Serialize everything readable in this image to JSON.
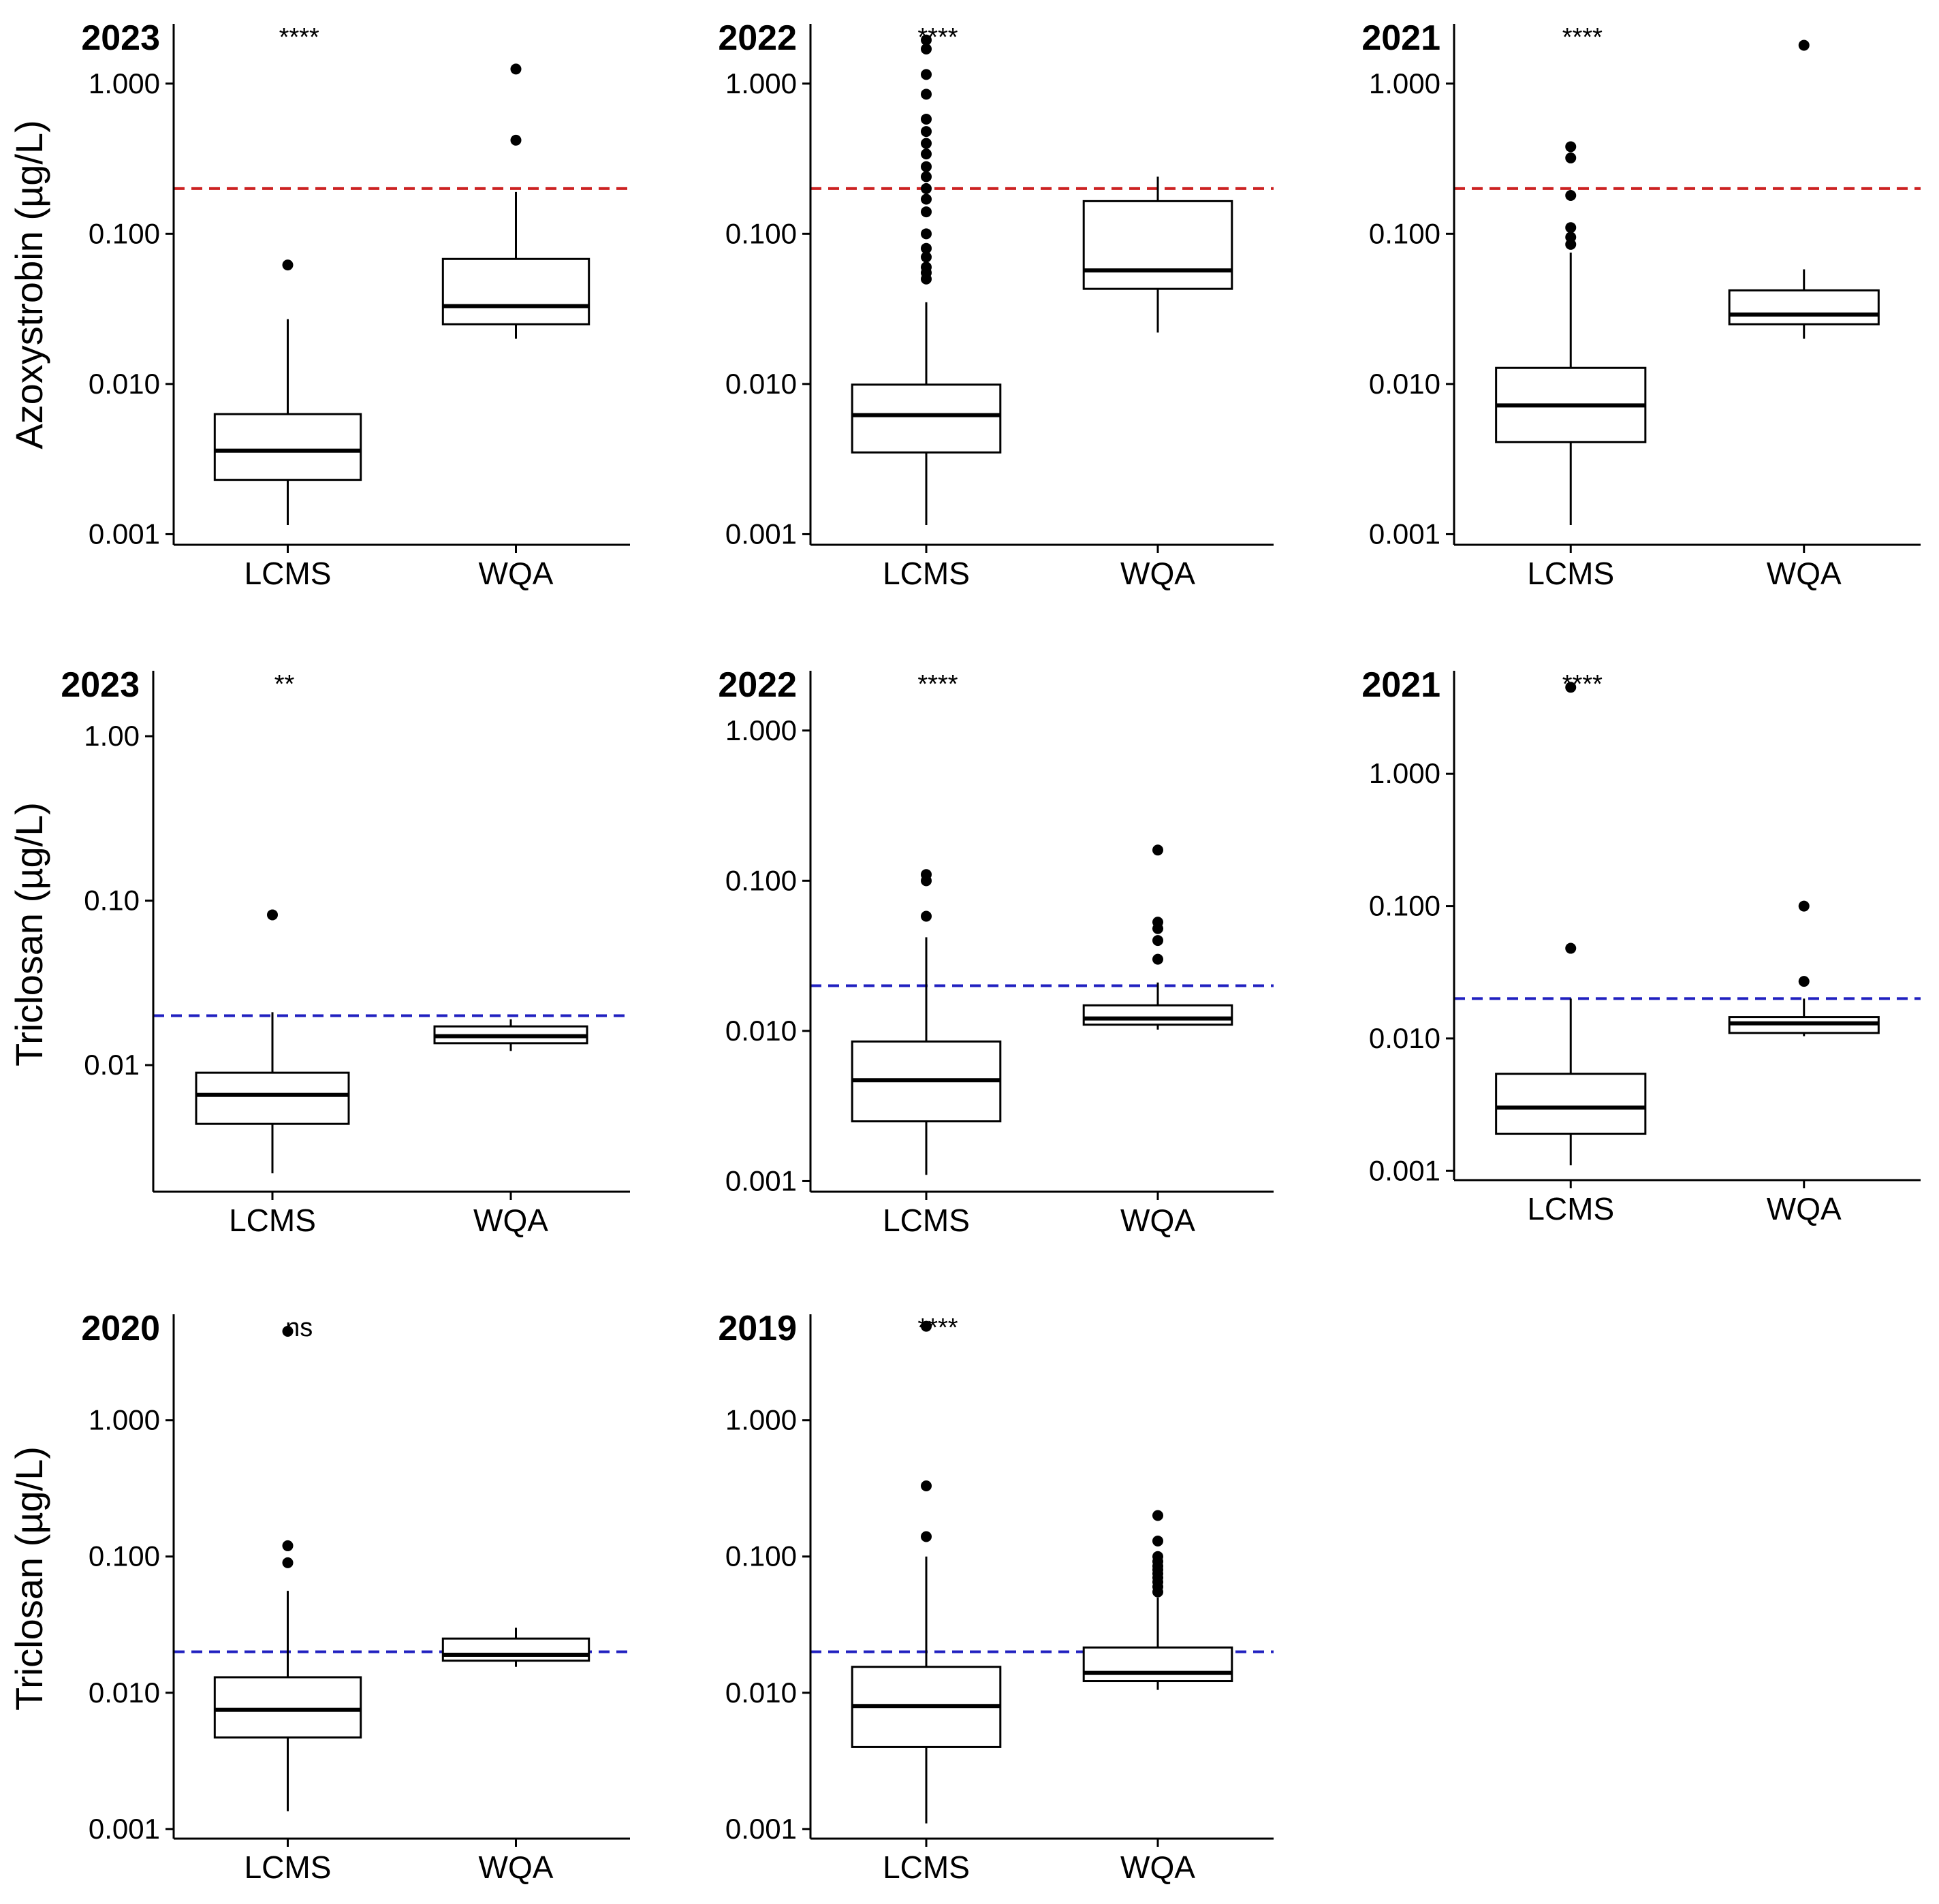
{
  "figure": {
    "colors": {
      "ink": "#000000",
      "azoxystrobin_threshold": "#cc2222",
      "triclosan_threshold": "#2020c0",
      "background": "#ffffff"
    }
  },
  "chart_data": [
    {
      "type": "box",
      "panel": "azox-2023",
      "title": "2023",
      "ylabel": "Azoxystrobin (µg/L)",
      "categories": [
        "LCMS",
        "WQA"
      ],
      "yscale": "log",
      "ylim": [
        0.00085,
        2.5
      ],
      "yticks": [
        0.001,
        0.01,
        0.1,
        1
      ],
      "ytick_labels": [
        "0.001",
        "0.010",
        "0.100",
        "1.000"
      ],
      "significance": "****",
      "threshold": 0.2,
      "threshold_color": "azoxystrobin_threshold",
      "boxes": [
        {
          "category": "LCMS",
          "whisker_low": 0.00115,
          "q1": 0.0023,
          "median": 0.0036,
          "q3": 0.0063,
          "whisker_high": 0.027,
          "outliers": [
            0.062
          ]
        },
        {
          "category": "WQA",
          "whisker_low": 0.02,
          "q1": 0.025,
          "median": 0.033,
          "q3": 0.068,
          "whisker_high": 0.19,
          "outliers": [
            0.42,
            1.25
          ]
        }
      ]
    },
    {
      "type": "box",
      "panel": "azox-2022",
      "title": "2022",
      "ylabel": "",
      "categories": [
        "LCMS",
        "WQA"
      ],
      "yscale": "log",
      "ylim": [
        0.00085,
        2.5
      ],
      "yticks": [
        0.001,
        0.01,
        0.1,
        1
      ],
      "ytick_labels": [
        "0.001",
        "0.010",
        "0.100",
        "1.000"
      ],
      "significance": "****",
      "threshold": 0.2,
      "threshold_color": "azoxystrobin_threshold",
      "boxes": [
        {
          "category": "LCMS",
          "whisker_low": 0.00115,
          "q1": 0.0035,
          "median": 0.0062,
          "q3": 0.0099,
          "whisker_high": 0.035,
          "outliers": [
            0.05,
            0.055,
            0.06,
            0.07,
            0.08,
            0.1,
            0.14,
            0.17,
            0.2,
            0.24,
            0.28,
            0.34,
            0.4,
            0.48,
            0.58,
            0.85,
            1.15,
            1.7,
            1.95
          ]
        },
        {
          "category": "WQA",
          "whisker_low": 0.022,
          "q1": 0.043,
          "median": 0.057,
          "q3": 0.165,
          "whisker_high": 0.24,
          "outliers": []
        }
      ]
    },
    {
      "type": "box",
      "panel": "azox-2021",
      "title": "2021",
      "ylabel": "",
      "categories": [
        "LCMS",
        "WQA"
      ],
      "yscale": "log",
      "ylim": [
        0.00085,
        2.5
      ],
      "yticks": [
        0.001,
        0.01,
        0.1,
        1
      ],
      "ytick_labels": [
        "0.001",
        "0.010",
        "0.100",
        "1.000"
      ],
      "significance": "****",
      "threshold": 0.2,
      "threshold_color": "azoxystrobin_threshold",
      "boxes": [
        {
          "category": "LCMS",
          "whisker_low": 0.00115,
          "q1": 0.0041,
          "median": 0.0072,
          "q3": 0.0128,
          "whisker_high": 0.075,
          "outliers": [
            0.085,
            0.095,
            0.11,
            0.18,
            0.32,
            0.38
          ]
        },
        {
          "category": "WQA",
          "whisker_low": 0.02,
          "q1": 0.025,
          "median": 0.029,
          "q3": 0.042,
          "whisker_high": 0.058,
          "outliers": [
            1.8
          ]
        }
      ]
    },
    {
      "type": "box",
      "panel": "tric-2023",
      "title": "2023",
      "ylabel": "Triclosan (µg/L)",
      "categories": [
        "LCMS",
        "WQA"
      ],
      "yscale": "log",
      "ylim": [
        0.0017,
        2.5
      ],
      "yticks": [
        0.01,
        0.1,
        1
      ],
      "ytick_labels": [
        "0.01",
        "0.10",
        "1.00"
      ],
      "significance": "**",
      "threshold": 0.02,
      "threshold_color": "triclosan_threshold",
      "boxes": [
        {
          "category": "LCMS",
          "whisker_low": 0.0022,
          "q1": 0.0044,
          "median": 0.0066,
          "q3": 0.009,
          "whisker_high": 0.021,
          "outliers": [
            0.082
          ]
        },
        {
          "category": "WQA",
          "whisker_low": 0.0122,
          "q1": 0.0136,
          "median": 0.015,
          "q3": 0.0172,
          "whisker_high": 0.019,
          "outliers": []
        }
      ]
    },
    {
      "type": "box",
      "panel": "tric-2022",
      "title": "2022",
      "ylabel": "",
      "categories": [
        "LCMS",
        "WQA"
      ],
      "yscale": "log",
      "ylim": [
        0.00085,
        2.5
      ],
      "yticks": [
        0.001,
        0.01,
        0.1,
        1
      ],
      "ytick_labels": [
        "0.001",
        "0.010",
        "0.100",
        "1.000"
      ],
      "significance": "****",
      "threshold": 0.02,
      "threshold_color": "triclosan_threshold",
      "boxes": [
        {
          "category": "LCMS",
          "whisker_low": 0.0011,
          "q1": 0.0025,
          "median": 0.0047,
          "q3": 0.0085,
          "whisker_high": 0.042,
          "outliers": [
            0.058,
            0.1,
            0.11
          ]
        },
        {
          "category": "WQA",
          "whisker_low": 0.0102,
          "q1": 0.011,
          "median": 0.0121,
          "q3": 0.0148,
          "whisker_high": 0.021,
          "outliers": [
            0.03,
            0.04,
            0.048,
            0.053,
            0.16
          ]
        }
      ]
    },
    {
      "type": "box",
      "panel": "tric-2021",
      "title": "2021",
      "ylabel": "",
      "categories": [
        "LCMS",
        "WQA"
      ],
      "yscale": "log",
      "ylim": [
        0.00085,
        6
      ],
      "yticks": [
        0.001,
        0.01,
        0.1,
        1
      ],
      "ytick_labels": [
        "0.001",
        "0.010",
        "0.100",
        "1.000"
      ],
      "significance": "****",
      "threshold": 0.02,
      "threshold_color": "triclosan_threshold",
      "boxes": [
        {
          "category": "LCMS",
          "whisker_low": 0.0011,
          "q1": 0.0019,
          "median": 0.003,
          "q3": 0.0054,
          "whisker_high": 0.02,
          "outliers": [
            0.048,
            4.5
          ]
        },
        {
          "category": "WQA",
          "whisker_low": 0.0104,
          "q1": 0.011,
          "median": 0.013,
          "q3": 0.0145,
          "whisker_high": 0.02,
          "outliers": [
            0.027,
            0.1
          ]
        }
      ]
    },
    {
      "type": "box",
      "panel": "tric-2020",
      "title": "2020",
      "ylabel": "Triclosan (µg/L)",
      "categories": [
        "LCMS",
        "WQA"
      ],
      "yscale": "log",
      "ylim": [
        0.00085,
        6
      ],
      "yticks": [
        0.001,
        0.01,
        0.1,
        1
      ],
      "ytick_labels": [
        "0.001",
        "0.010",
        "0.100",
        "1.000"
      ],
      "significance": "ns",
      "threshold": 0.02,
      "threshold_color": "triclosan_threshold",
      "boxes": [
        {
          "category": "LCMS",
          "whisker_low": 0.00135,
          "q1": 0.0047,
          "median": 0.0075,
          "q3": 0.013,
          "whisker_high": 0.056,
          "outliers": [
            0.09,
            0.12,
            4.5
          ]
        },
        {
          "category": "WQA",
          "whisker_low": 0.0155,
          "q1": 0.0172,
          "median": 0.019,
          "q3": 0.025,
          "whisker_high": 0.03,
          "outliers": []
        }
      ]
    },
    {
      "type": "box",
      "panel": "tric-2019",
      "title": "2019",
      "ylabel": "",
      "categories": [
        "LCMS",
        "WQA"
      ],
      "yscale": "log",
      "ylim": [
        0.00085,
        6
      ],
      "yticks": [
        0.001,
        0.01,
        0.1,
        1
      ],
      "ytick_labels": [
        "0.001",
        "0.010",
        "0.100",
        "1.000"
      ],
      "significance": "****",
      "threshold": 0.02,
      "threshold_color": "triclosan_threshold",
      "boxes": [
        {
          "category": "LCMS",
          "whisker_low": 0.0011,
          "q1": 0.004,
          "median": 0.008,
          "q3": 0.0155,
          "whisker_high": 0.1,
          "outliers": [
            0.14,
            0.33,
            4.9
          ]
        },
        {
          "category": "WQA",
          "whisker_low": 0.0105,
          "q1": 0.0122,
          "median": 0.014,
          "q3": 0.0215,
          "whisker_high": 0.05,
          "outliers": [
            0.055,
            0.06,
            0.065,
            0.07,
            0.075,
            0.08,
            0.085,
            0.092,
            0.1,
            0.13,
            0.2
          ]
        }
      ]
    }
  ]
}
